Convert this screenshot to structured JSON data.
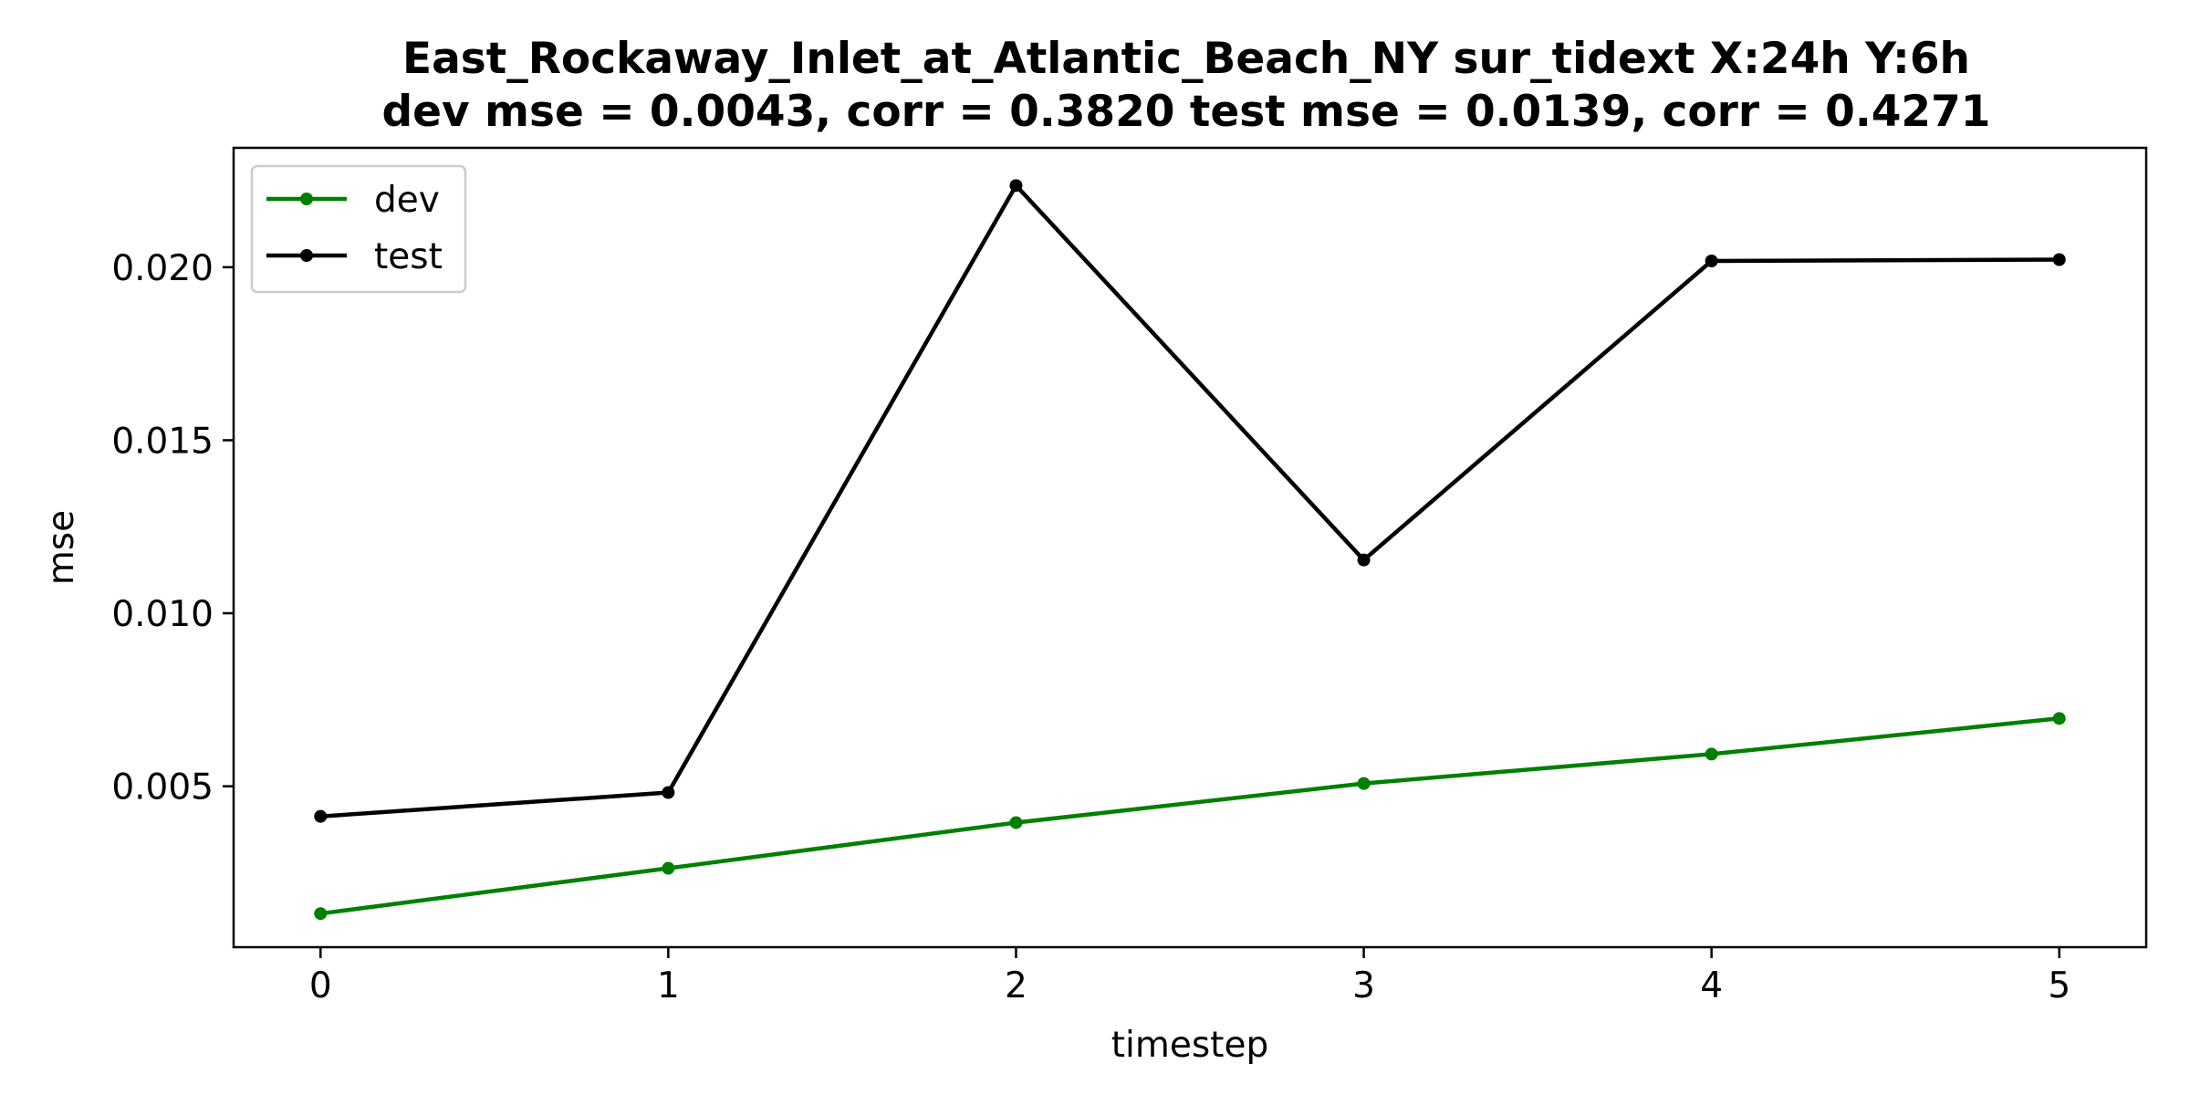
{
  "chart_data": {
    "type": "line",
    "title_line1": "East_Rockaway_Inlet_at_Atlantic_Beach_NY   sur_tidext   X:24h   Y:6h",
    "title_line2": "dev mse = 0.0043, corr = 0.3820   test mse = 0.0139, corr = 0.4271",
    "xlabel": "timestep",
    "ylabel": "mse",
    "x": [
      0,
      1,
      2,
      3,
      4,
      5
    ],
    "x_tick_labels": [
      "0",
      "1",
      "2",
      "3",
      "4",
      "5"
    ],
    "y_ticks": [
      0.005,
      0.01,
      0.015,
      0.02
    ],
    "y_tick_labels": [
      "0.005",
      "0.010",
      "0.015",
      "0.020"
    ],
    "xlim": [
      -0.25,
      5.25
    ],
    "ylim": [
      0.00035,
      0.02345
    ],
    "grid": false,
    "legend_position": "upper-left",
    "series": [
      {
        "name": "dev",
        "color": "#008000",
        "values": [
          0.00132,
          0.00263,
          0.00395,
          0.00508,
          0.00593,
          0.00696
        ]
      },
      {
        "name": "test",
        "color": "#000000",
        "values": [
          0.00413,
          0.00482,
          0.02236,
          0.01154,
          0.02018,
          0.02022
        ]
      }
    ]
  }
}
